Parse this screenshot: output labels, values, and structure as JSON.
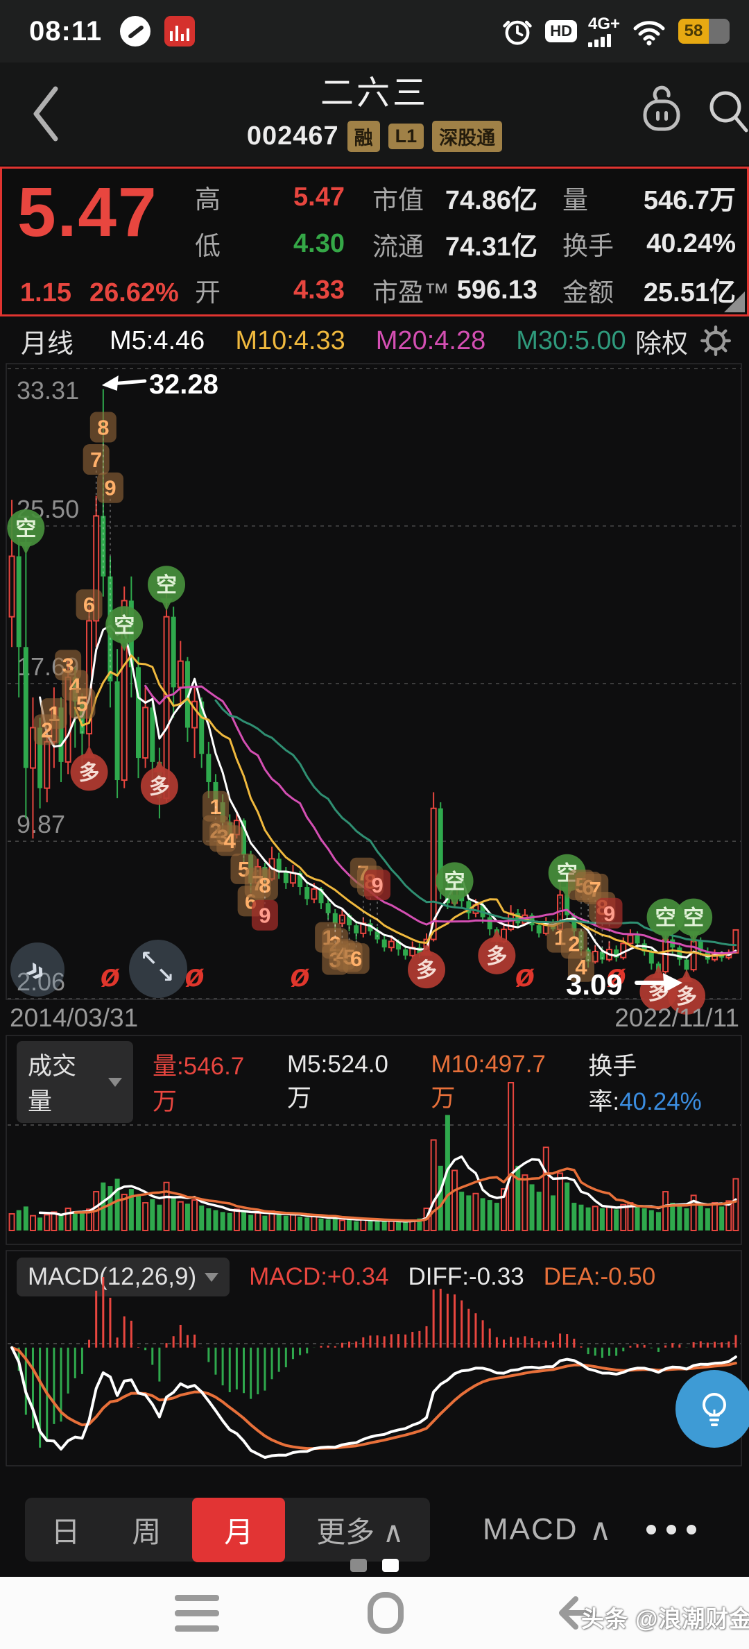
{
  "status_bar": {
    "time": "08:11",
    "battery": "58",
    "network": "4G+",
    "hd_label": "HD",
    "icons": [
      "compass-icon",
      "stock-app-icon",
      "alarm-icon",
      "hd-icon",
      "signal-4g-icon",
      "wifi-icon",
      "battery-icon"
    ]
  },
  "header": {
    "title": "二六三",
    "code": "002467",
    "tags": [
      "融",
      "L1",
      "深股通"
    ],
    "icons": [
      "back-icon",
      "robot-assistant-icon",
      "search-icon"
    ]
  },
  "quote": {
    "price": "5.47",
    "change": "1.15",
    "change_pct": "26.62%",
    "cells": [
      {
        "label": "高",
        "value": "5.47"
      },
      {
        "label": "低",
        "value": "4.30"
      },
      {
        "label": "开",
        "value": "4.33"
      },
      {
        "label": "市值",
        "value": "74.86亿"
      },
      {
        "label": "流通",
        "value": "74.31亿"
      },
      {
        "label": "市盈™",
        "value": "596.13"
      },
      {
        "label": "量",
        "value": "546.7万"
      },
      {
        "label": "换手",
        "value": "40.24%"
      },
      {
        "label": "金额",
        "value": "25.51亿"
      }
    ]
  },
  "ma_bar": {
    "period": "月线",
    "m5": "M5:4.46",
    "m10": "M10:4.33",
    "m20": "M20:4.28",
    "m30": "M30:5.00",
    "exright_label": "除权"
  },
  "chart_data": {
    "type": "candlestick",
    "x_labels": [
      "2014/03/31",
      "2022/11/11"
    ],
    "y_ticks": [
      "33.31",
      "25.50",
      "17.69",
      "9.87",
      "2.06"
    ],
    "ylim": [
      2.06,
      33.31
    ],
    "annotations": {
      "peak": "32.28",
      "low": "3.09"
    },
    "colors": {
      "up": "#e8463f",
      "down": "#2fa94d",
      "ma5": "#ffffff",
      "ma10": "#f0b93e",
      "ma20": "#d44fb3",
      "ma30": "#2f8f72",
      "mavol5": "#ffffff",
      "mavol10": "#e8703a",
      "diff": "#ffffff",
      "dea": "#e8703a"
    },
    "candles": [
      [
        21.0,
        24.0,
        26.8,
        19.5
      ],
      [
        24.0,
        19.5,
        25.0,
        17.0
      ],
      [
        19.5,
        13.5,
        25.5,
        11.0
      ],
      [
        13.5,
        15.5,
        17.0,
        10.0
      ],
      [
        15.5,
        12.5,
        16.0,
        11.5
      ],
      [
        12.5,
        14.8,
        15.5,
        11.8
      ],
      [
        14.8,
        16.5,
        17.5,
        13.5
      ],
      [
        16.5,
        13.8,
        17.0,
        12.8
      ],
      [
        13.8,
        18.0,
        18.8,
        13.2
      ],
      [
        18.0,
        16.8,
        18.5,
        14.5
      ],
      [
        16.8,
        15.2,
        17.2,
        13.0
      ],
      [
        15.2,
        20.8,
        21.5,
        14.0
      ],
      [
        20.8,
        26.0,
        27.0,
        19.5
      ],
      [
        26.0,
        23.0,
        32.28,
        22.0
      ],
      [
        23.0,
        17.8,
        24.0,
        16.5
      ],
      [
        17.8,
        12.9,
        19.4,
        12.0
      ],
      [
        12.9,
        21.8,
        22.5,
        12.5
      ],
      [
        21.8,
        18.5,
        23.0,
        17.0
      ],
      [
        18.5,
        14.0,
        19.0,
        13.0
      ],
      [
        14.0,
        16.5,
        17.5,
        13.5
      ],
      [
        16.5,
        13.8,
        17.0,
        12.5
      ],
      [
        13.8,
        12.0,
        14.5,
        11.0
      ],
      [
        12.0,
        21.0,
        22.8,
        11.8
      ],
      [
        21.0,
        17.5,
        21.5,
        16.0
      ],
      [
        17.5,
        18.8,
        19.8,
        16.5
      ],
      [
        18.8,
        15.5,
        19.0,
        14.8
      ],
      [
        15.5,
        16.8,
        17.5,
        14.0
      ],
      [
        16.8,
        14.2,
        17.0,
        13.5
      ],
      [
        14.2,
        12.8,
        14.8,
        12.0
      ],
      [
        12.8,
        11.8,
        13.2,
        11.2
      ],
      [
        11.8,
        10.8,
        12.2,
        10.4
      ],
      [
        10.8,
        10.2,
        11.2,
        9.8
      ],
      [
        10.2,
        10.9,
        11.4,
        10.0
      ],
      [
        10.9,
        9.2,
        11.0,
        8.8
      ],
      [
        9.2,
        7.8,
        9.4,
        7.3
      ],
      [
        7.8,
        8.6,
        9.0,
        7.6
      ],
      [
        8.6,
        8.0,
        8.8,
        7.6
      ],
      [
        8.0,
        9.0,
        9.6,
        7.9
      ],
      [
        9.0,
        8.4,
        9.3,
        8.0
      ],
      [
        8.4,
        7.8,
        8.6,
        7.5
      ],
      [
        7.8,
        8.3,
        8.7,
        7.6
      ],
      [
        8.3,
        7.6,
        8.4,
        7.2
      ],
      [
        7.6,
        7.0,
        7.8,
        6.7
      ],
      [
        7.0,
        7.5,
        7.8,
        6.8
      ],
      [
        7.5,
        6.8,
        7.6,
        6.5
      ],
      [
        6.8,
        6.3,
        7.0,
        6.0
      ],
      [
        6.3,
        5.8,
        6.5,
        5.5
      ],
      [
        5.8,
        6.2,
        6.5,
        5.6
      ],
      [
        6.2,
        5.7,
        6.3,
        5.4
      ],
      [
        5.7,
        5.3,
        5.9,
        5.0
      ],
      [
        5.3,
        5.8,
        6.1,
        5.1
      ],
      [
        5.8,
        5.4,
        6.0,
        5.2
      ],
      [
        5.4,
        5.0,
        5.6,
        4.8
      ],
      [
        5.0,
        4.6,
        5.2,
        4.4
      ],
      [
        4.6,
        4.9,
        5.2,
        4.4
      ],
      [
        4.9,
        4.5,
        5.0,
        4.2
      ],
      [
        4.5,
        4.2,
        4.7,
        4.0
      ],
      [
        4.2,
        4.6,
        4.9,
        4.1
      ],
      [
        4.6,
        4.3,
        4.8,
        4.1
      ],
      [
        4.3,
        5.0,
        5.3,
        4.2
      ],
      [
        5.0,
        11.5,
        12.3,
        4.9
      ],
      [
        11.5,
        7.5,
        11.8,
        7.0
      ],
      [
        7.5,
        6.8,
        8.0,
        6.5
      ],
      [
        6.8,
        7.6,
        8.0,
        6.6
      ],
      [
        7.6,
        6.9,
        7.8,
        6.6
      ],
      [
        6.9,
        6.3,
        7.1,
        6.0
      ],
      [
        6.3,
        6.7,
        7.0,
        6.1
      ],
      [
        6.7,
        6.1,
        6.9,
        5.8
      ],
      [
        6.1,
        5.5,
        6.3,
        5.2
      ],
      [
        5.5,
        4.9,
        5.6,
        4.6
      ],
      [
        4.9,
        5.5,
        5.8,
        4.8
      ],
      [
        5.5,
        6.3,
        6.7,
        5.4
      ],
      [
        6.3,
        5.8,
        6.5,
        5.6
      ],
      [
        5.8,
        6.2,
        6.5,
        5.7
      ],
      [
        6.2,
        5.7,
        6.3,
        5.4
      ],
      [
        5.7,
        5.3,
        5.9,
        5.1
      ],
      [
        5.3,
        5.8,
        6.1,
        5.2
      ],
      [
        5.8,
        5.5,
        6.0,
        5.4
      ],
      [
        5.5,
        7.2,
        7.9,
        5.4
      ],
      [
        7.2,
        6.2,
        7.8,
        5.9
      ],
      [
        6.2,
        5.4,
        6.3,
        5.1
      ],
      [
        5.4,
        4.5,
        5.5,
        4.2
      ],
      [
        4.5,
        3.9,
        4.6,
        3.6
      ],
      [
        3.9,
        4.4,
        4.7,
        3.8
      ],
      [
        4.4,
        4.0,
        4.6,
        3.8
      ],
      [
        4.0,
        4.5,
        4.9,
        3.9
      ],
      [
        4.5,
        4.1,
        4.7,
        3.9
      ],
      [
        4.1,
        4.8,
        5.1,
        4.0
      ],
      [
        4.8,
        5.2,
        5.5,
        4.6
      ],
      [
        5.2,
        4.8,
        5.4,
        4.5
      ],
      [
        4.8,
        4.4,
        5.0,
        4.2
      ],
      [
        4.4,
        3.8,
        4.5,
        3.5
      ],
      [
        3.8,
        3.4,
        3.9,
        3.1
      ],
      [
        3.4,
        5.0,
        5.4,
        3.3
      ],
      [
        5.0,
        4.6,
        5.3,
        4.3
      ],
      [
        4.6,
        4.0,
        4.7,
        3.7
      ],
      [
        4.0,
        3.5,
        4.1,
        3.09
      ],
      [
        3.5,
        4.9,
        5.3,
        3.4
      ],
      [
        4.9,
        4.4,
        5.1,
        4.2
      ],
      [
        4.4,
        4.0,
        4.6,
        3.8
      ],
      [
        4.0,
        4.3,
        4.5,
        3.9
      ],
      [
        4.3,
        4.1,
        4.4,
        3.9
      ],
      [
        4.1,
        4.33,
        4.5,
        4.0
      ],
      [
        4.33,
        5.47,
        5.47,
        4.3
      ]
    ],
    "volumes": [
      180,
      220,
      260,
      160,
      140,
      170,
      200,
      180,
      240,
      200,
      190,
      230,
      420,
      520,
      480,
      560,
      390,
      450,
      380,
      300,
      340,
      280,
      520,
      360,
      310,
      290,
      330,
      270,
      240,
      220,
      200,
      190,
      230,
      210,
      170,
      190,
      160,
      210,
      180,
      160,
      170,
      150,
      140,
      160,
      130,
      120,
      140,
      110,
      130,
      100,
      120,
      110,
      100,
      110,
      100,
      90,
      100,
      110,
      130,
      240,
      980,
      700,
      1250,
      650,
      420,
      380,
      400,
      350,
      330,
      300,
      450,
      1600,
      700,
      600,
      500,
      420,
      900,
      380,
      620,
      520,
      300,
      280,
      250,
      260,
      240,
      260,
      230,
      280,
      300,
      260,
      240,
      220,
      200,
      420,
      300,
      260,
      240,
      380,
      280,
      240,
      300,
      260,
      320,
      560
    ],
    "markers": [
      [
        "k",
        2,
        25.4,
        "空"
      ],
      [
        "n",
        12,
        28.8,
        "7"
      ],
      [
        "n",
        13,
        30.4,
        "8"
      ],
      [
        "n",
        14,
        27.4,
        "9"
      ],
      [
        "n",
        11,
        21.6,
        "6"
      ],
      [
        "k",
        16,
        20.6,
        "空"
      ],
      [
        "k",
        22,
        22.6,
        "空"
      ],
      [
        "n",
        6,
        16.2,
        "1"
      ],
      [
        "n",
        5,
        15.4,
        "2"
      ],
      [
        "n",
        8,
        18.6,
        "3"
      ],
      [
        "n",
        9,
        17.6,
        "4"
      ],
      [
        "n",
        10,
        16.7,
        "5"
      ],
      [
        "d",
        11,
        13.3,
        "多"
      ],
      [
        "d",
        21,
        12.6,
        "多"
      ],
      [
        "n",
        29,
        11.6,
        "1"
      ],
      [
        "n",
        29,
        10.4,
        "2"
      ],
      [
        "n",
        30,
        10.1,
        "3"
      ],
      [
        "n",
        31,
        9.9,
        "4"
      ],
      [
        "n",
        33,
        8.5,
        "5"
      ],
      [
        "n",
        34,
        6.9,
        "6"
      ],
      [
        "n",
        35,
        7.8,
        "7"
      ],
      [
        "n",
        36,
        7.7,
        "8"
      ],
      [
        "nr",
        36,
        6.2,
        "9"
      ],
      [
        "n",
        50,
        8.3,
        "7"
      ],
      [
        "n",
        51,
        7.9,
        "8"
      ],
      [
        "nr",
        52,
        7.7,
        "9"
      ],
      [
        "k",
        63,
        7.9,
        "空"
      ],
      [
        "n",
        45,
        5.1,
        "1"
      ],
      [
        "n",
        46,
        4.8,
        "2"
      ],
      [
        "n",
        46,
        4.0,
        "3"
      ],
      [
        "n",
        47,
        4.25,
        "4"
      ],
      [
        "n",
        48,
        4.15,
        "5"
      ],
      [
        "n",
        49,
        4.05,
        "6"
      ],
      [
        "d",
        59,
        3.5,
        "多"
      ],
      [
        "d",
        69,
        4.2,
        "多"
      ],
      [
        "k",
        79,
        8.3,
        "空"
      ],
      [
        "n",
        78,
        5.1,
        "1"
      ],
      [
        "n",
        80,
        4.8,
        "2"
      ],
      [
        "n",
        81,
        3.65,
        "4"
      ],
      [
        "n",
        81,
        7.7,
        "5"
      ],
      [
        "n",
        82,
        7.6,
        "6"
      ],
      [
        "n",
        83,
        7.5,
        "7"
      ],
      [
        "n",
        84,
        6.6,
        "8"
      ],
      [
        "nr",
        85,
        6.3,
        "9"
      ],
      [
        "k",
        93,
        6.1,
        "空"
      ],
      [
        "k",
        97,
        6.1,
        "空"
      ],
      [
        "d",
        92,
        2.4,
        "多"
      ],
      [
        "d",
        96,
        2.2,
        "多"
      ]
    ],
    "exright_indices": [
      14,
      26,
      41,
      73,
      86
    ],
    "exright_symbol": "ø"
  },
  "volume_pane": {
    "title": "成交量",
    "vol": "量:546.7万",
    "m5": "M5:524.0万",
    "m10": "M10:497.7万",
    "turnover_label": "换手率:",
    "turnover_value": "40.24%"
  },
  "macd_pane": {
    "title": "MACD(12,26,9)",
    "macd": "MACD:+0.34",
    "diff": "DIFF:-0.33",
    "dea": "DEA:-0.50"
  },
  "tabs": {
    "items": [
      "日",
      "周",
      "月",
      "更多"
    ],
    "selected": "月",
    "caret": "∧",
    "indicator": "MACD"
  },
  "footer": {
    "watermark": "头条 @浪潮财金V"
  }
}
